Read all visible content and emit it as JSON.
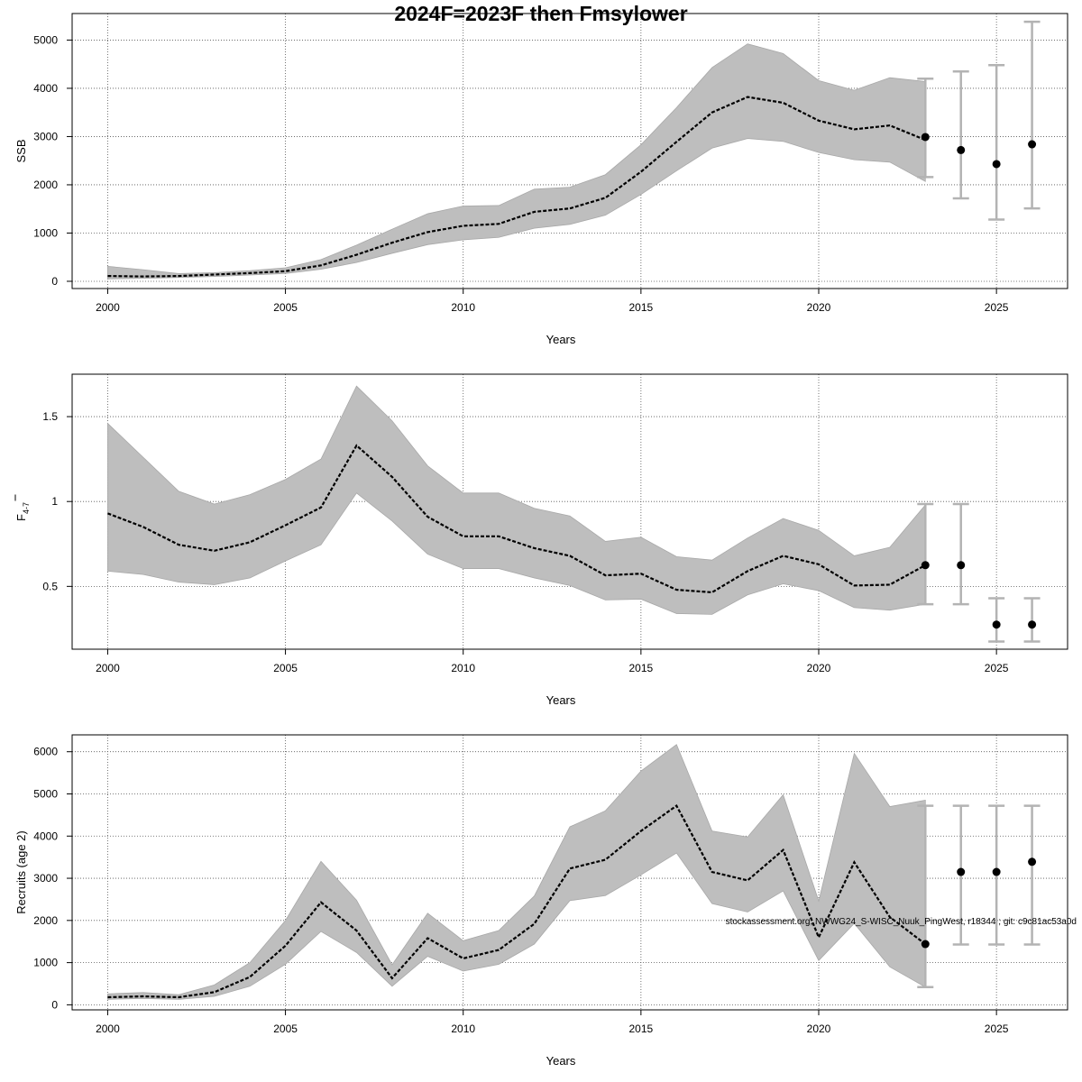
{
  "title": "2024F=2023F then Fmsylower",
  "watermark": "stockassessment.org, NWWG24_S-WISC_Nuuk_PingWest, r18344 ; git: c9c81ac53a0d",
  "chart_data": [
    {
      "type": "line",
      "xlabel": "Years",
      "ylabel": "SSB",
      "xlim": [
        1999,
        2027
      ],
      "ylim": [
        -150,
        5550
      ],
      "xticks": [
        2000,
        2005,
        2010,
        2015,
        2020,
        2025
      ],
      "yticks": [
        0,
        1000,
        2000,
        3000,
        4000,
        5000
      ],
      "grid": true,
      "x": [
        2000,
        2001,
        2002,
        2003,
        2004,
        2005,
        2006,
        2007,
        2008,
        2009,
        2010,
        2011,
        2012,
        2013,
        2014,
        2015,
        2016,
        2017,
        2018,
        2019,
        2020,
        2021,
        2022,
        2023
      ],
      "estimate": [
        110,
        100,
        110,
        140,
        170,
        210,
        330,
        550,
        800,
        1020,
        1150,
        1190,
        1440,
        1510,
        1730,
        2270,
        2890,
        3500,
        3820,
        3700,
        3330,
        3150,
        3230,
        2930
      ],
      "upper": [
        310,
        240,
        160,
        180,
        220,
        280,
        450,
        750,
        1080,
        1400,
        1560,
        1570,
        1910,
        1950,
        2210,
        2830,
        3600,
        4430,
        4920,
        4720,
        4160,
        3960,
        4220,
        4140
      ],
      "lower": [
        50,
        60,
        80,
        100,
        130,
        160,
        250,
        390,
        580,
        760,
        860,
        910,
        1100,
        1180,
        1370,
        1800,
        2290,
        2760,
        2960,
        2900,
        2670,
        2520,
        2470,
        2070
      ],
      "forecast": [
        {
          "year": 2023,
          "value": 2990,
          "low": 2160,
          "high": 4200
        },
        {
          "year": 2024,
          "value": 2720,
          "low": 1720,
          "high": 4350
        },
        {
          "year": 2025,
          "value": 2430,
          "low": 1280,
          "high": 4480
        },
        {
          "year": 2026,
          "value": 2840,
          "low": 1510,
          "high": 5380
        }
      ]
    },
    {
      "type": "line",
      "xlabel": "Years",
      "ylabel": "F",
      "ylabel_sub": "4-7",
      "xlim": [
        1999,
        2027
      ],
      "ylim": [
        0.13,
        1.75
      ],
      "xticks": [
        2000,
        2005,
        2010,
        2015,
        2020,
        2025
      ],
      "yticks": [
        0.5,
        1.0,
        1.5
      ],
      "grid": true,
      "x": [
        2000,
        2001,
        2002,
        2003,
        2004,
        2005,
        2006,
        2007,
        2008,
        2009,
        2010,
        2011,
        2012,
        2013,
        2014,
        2015,
        2016,
        2017,
        2018,
        2019,
        2020,
        2021,
        2022,
        2023
      ],
      "estimate": [
        0.93,
        0.85,
        0.745,
        0.71,
        0.76,
        0.86,
        0.965,
        1.33,
        1.145,
        0.91,
        0.795,
        0.795,
        0.725,
        0.68,
        0.565,
        0.575,
        0.48,
        0.465,
        0.59,
        0.68,
        0.63,
        0.505,
        0.51,
        0.625
      ],
      "upper": [
        1.46,
        1.26,
        1.06,
        0.985,
        1.04,
        1.13,
        1.25,
        1.68,
        1.475,
        1.21,
        1.05,
        1.05,
        0.96,
        0.915,
        0.765,
        0.79,
        0.675,
        0.655,
        0.785,
        0.9,
        0.83,
        0.68,
        0.73,
        0.98
      ],
      "lower": [
        0.59,
        0.57,
        0.525,
        0.51,
        0.55,
        0.65,
        0.745,
        1.05,
        0.885,
        0.69,
        0.605,
        0.605,
        0.55,
        0.505,
        0.42,
        0.425,
        0.34,
        0.335,
        0.45,
        0.515,
        0.475,
        0.375,
        0.36,
        0.395
      ],
      "forecast": [
        {
          "year": 2023,
          "value": 0.625,
          "low": 0.395,
          "high": 0.985
        },
        {
          "year": 2024,
          "value": 0.625,
          "low": 0.395,
          "high": 0.985
        },
        {
          "year": 2025,
          "value": 0.275,
          "low": 0.175,
          "high": 0.43
        },
        {
          "year": 2026,
          "value": 0.275,
          "low": 0.175,
          "high": 0.43
        }
      ]
    },
    {
      "type": "line",
      "xlabel": "Years",
      "ylabel": "Recruits (age 2)",
      "xlim": [
        1999,
        2027
      ],
      "ylim": [
        -120,
        6400
      ],
      "xticks": [
        2000,
        2005,
        2010,
        2015,
        2020,
        2025
      ],
      "yticks": [
        0,
        1000,
        2000,
        3000,
        4000,
        5000,
        6000
      ],
      "grid": true,
      "x": [
        2000,
        2001,
        2002,
        2003,
        2004,
        2005,
        2006,
        2007,
        2008,
        2009,
        2010,
        2011,
        2012,
        2013,
        2014,
        2015,
        2016,
        2017,
        2018,
        2019,
        2020,
        2021,
        2022,
        2023
      ],
      "estimate": [
        180,
        200,
        180,
        300,
        660,
        1400,
        2430,
        1760,
        630,
        1580,
        1100,
        1300,
        1920,
        3230,
        3440,
        4120,
        4720,
        3150,
        2950,
        3670,
        1600,
        3380,
        2080,
        1440
      ],
      "upper": [
        260,
        290,
        240,
        470,
        1000,
        2000,
        3400,
        2480,
        950,
        2170,
        1520,
        1760,
        2580,
        4220,
        4600,
        5540,
        6170,
        4120,
        3980,
        4980,
        2460,
        5960,
        4700,
        4850
      ],
      "lower": [
        130,
        150,
        130,
        200,
        440,
        960,
        1740,
        1240,
        440,
        1150,
        800,
        960,
        1440,
        2470,
        2590,
        3080,
        3600,
        2400,
        2200,
        2700,
        1050,
        1930,
        900,
        420
      ],
      "forecast": [
        {
          "year": 2023,
          "value": 1440,
          "low": 420,
          "high": 4720
        },
        {
          "year": 2024,
          "value": 3150,
          "low": 1430,
          "high": 4720
        },
        {
          "year": 2025,
          "value": 3150,
          "low": 1430,
          "high": 4720
        },
        {
          "year": 2026,
          "value": 3390,
          "low": 1430,
          "high": 4720
        }
      ]
    }
  ]
}
